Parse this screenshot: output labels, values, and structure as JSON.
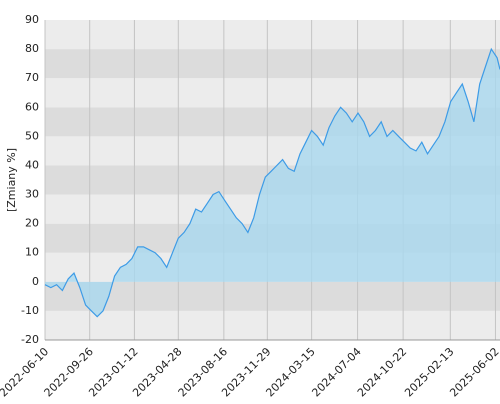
{
  "chart_data": {
    "type": "area",
    "y_label": "[Zmiany %]",
    "color": "#3d9be6",
    "fill": "#a9d8ef",
    "x": [
      "2022-06-10",
      "2022-06-24",
      "2022-07-08",
      "2022-07-22",
      "2022-08-05",
      "2022-08-19",
      "2022-09-02",
      "2022-09-16",
      "2022-09-30",
      "2022-10-14",
      "2022-10-28",
      "2022-11-11",
      "2022-11-25",
      "2022-12-09",
      "2022-12-23",
      "2023-01-06",
      "2023-01-20",
      "2023-02-03",
      "2023-02-17",
      "2023-03-03",
      "2023-03-17",
      "2023-03-31",
      "2023-04-14",
      "2023-04-28",
      "2023-05-12",
      "2023-05-26",
      "2023-06-09",
      "2023-06-23",
      "2023-07-07",
      "2023-07-21",
      "2023-08-04",
      "2023-08-18",
      "2023-09-01",
      "2023-09-15",
      "2023-09-29",
      "2023-10-13",
      "2023-10-27",
      "2023-11-10",
      "2023-11-24",
      "2023-12-08",
      "2023-12-22",
      "2024-01-05",
      "2024-01-19",
      "2024-02-02",
      "2024-02-16",
      "2024-03-01",
      "2024-03-15",
      "2024-03-29",
      "2024-04-12",
      "2024-04-26",
      "2024-05-10",
      "2024-05-24",
      "2024-06-07",
      "2024-06-21",
      "2024-07-05",
      "2024-07-19",
      "2024-08-02",
      "2024-08-16",
      "2024-08-30",
      "2024-09-13",
      "2024-09-27",
      "2024-10-11",
      "2024-10-25",
      "2024-11-08",
      "2024-11-22",
      "2024-12-06",
      "2024-12-20",
      "2025-01-03",
      "2025-01-17",
      "2025-01-31",
      "2025-02-14",
      "2025-02-28",
      "2025-03-14",
      "2025-03-28",
      "2025-04-11",
      "2025-04-25",
      "2025-05-09",
      "2025-05-23",
      "2025-06-06",
      "2025-06-13"
    ],
    "values": [
      -1,
      -2,
      -1,
      -3,
      1,
      3,
      -2,
      -8,
      -10,
      -12,
      -10,
      -5,
      2,
      5,
      6,
      8,
      12,
      12,
      11,
      10,
      8,
      5,
      10,
      15,
      17,
      20,
      25,
      24,
      27,
      30,
      31,
      28,
      25,
      22,
      20,
      17,
      22,
      30,
      36,
      38,
      40,
      42,
      39,
      38,
      44,
      48,
      52,
      50,
      47,
      53,
      57,
      60,
      58,
      55,
      58,
      55,
      50,
      52,
      55,
      50,
      52,
      50,
      48,
      46,
      45,
      48,
      44,
      47,
      50,
      55,
      62,
      65,
      68,
      62,
      55,
      68,
      74,
      80,
      77,
      73
    ],
    "xlim": [
      "2022-06-10",
      "2025-06-13"
    ],
    "xticks": [
      "2022-06-10",
      "2022-09-26",
      "2023-01-12",
      "2023-04-28",
      "2023-08-16",
      "2023-11-29",
      "2024-03-15",
      "2024-07-04",
      "2024-10-22",
      "2025-02-13",
      "2025-06-02"
    ],
    "ylim": [
      -20,
      90
    ],
    "yticks": [
      -20,
      -10,
      0,
      10,
      20,
      30,
      40,
      50,
      60,
      70,
      80,
      90
    ],
    "grid": true
  }
}
